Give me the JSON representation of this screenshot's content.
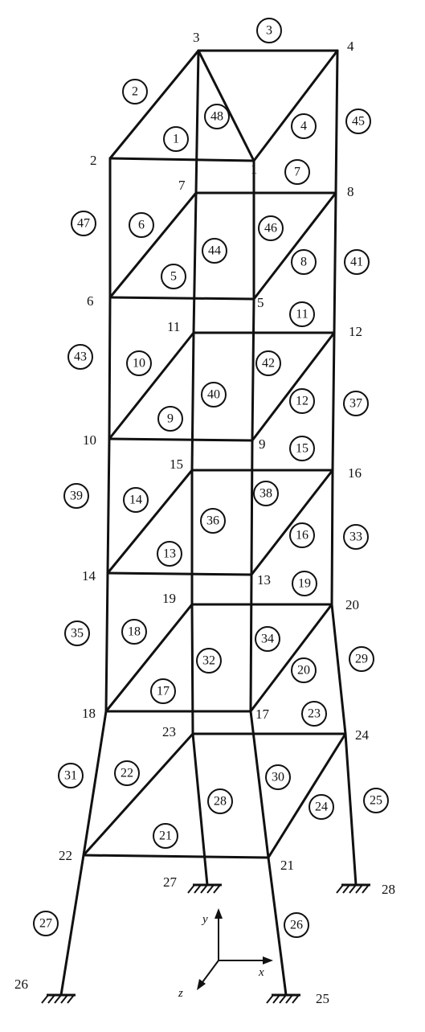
{
  "node_labels": [
    "1",
    "2",
    "3",
    "4",
    "5",
    "6",
    "7",
    "8",
    "9",
    "10",
    "11",
    "12",
    "13",
    "14",
    "15",
    "16",
    "17",
    "18",
    "19",
    "20",
    "21",
    "22",
    "23",
    "24",
    "25",
    "26",
    "27",
    "28"
  ],
  "element_labels": [
    "1",
    "2",
    "3",
    "4",
    "5",
    "6",
    "7",
    "8",
    "9",
    "10",
    "11",
    "12",
    "13",
    "14",
    "15",
    "16",
    "17",
    "18",
    "19",
    "20",
    "21",
    "22",
    "23",
    "24",
    "25",
    "26",
    "27",
    "28",
    "29",
    "30",
    "31",
    "32",
    "33",
    "34",
    "35",
    "36",
    "37",
    "38",
    "39",
    "40",
    "41",
    "42",
    "43",
    "44",
    "45",
    "46",
    "47",
    "48"
  ],
  "axes": {
    "x": "x",
    "y": "y",
    "z": "z"
  }
}
